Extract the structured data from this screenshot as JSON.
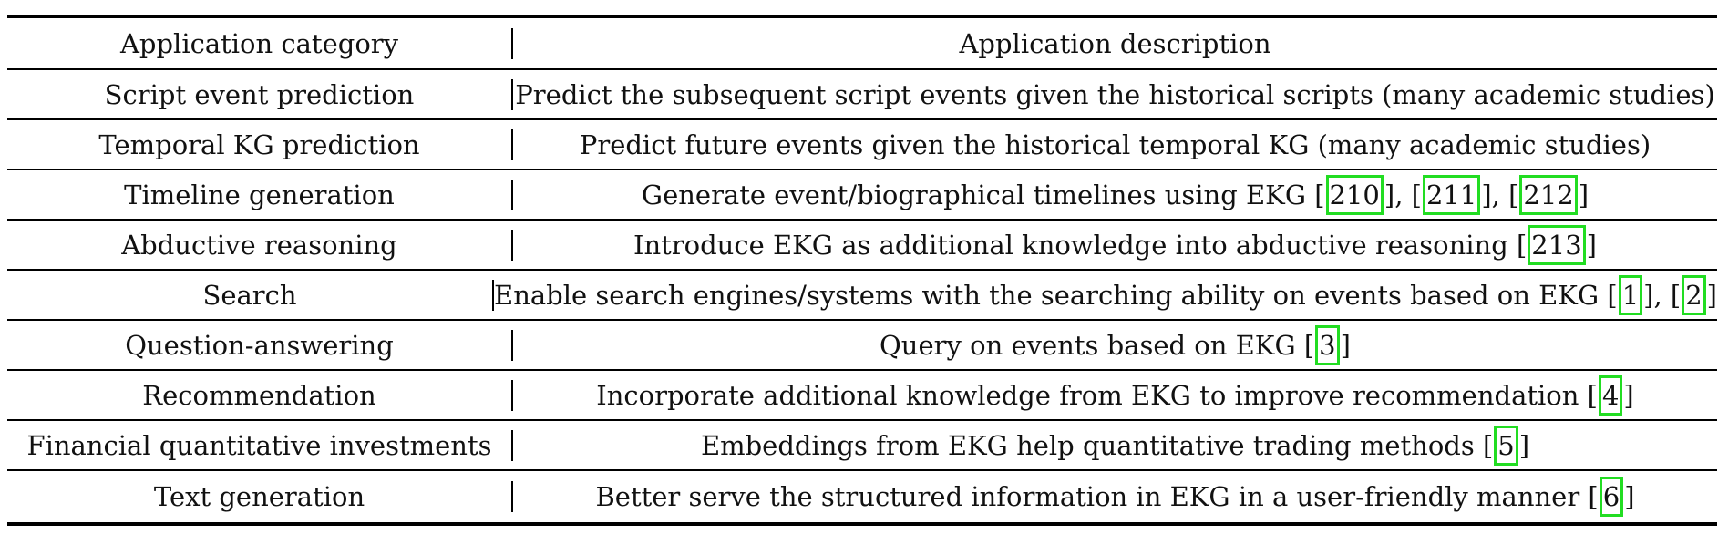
{
  "header": {
    "category": "Application category",
    "description": "Application description"
  },
  "rows": [
    {
      "category": "Script event prediction",
      "parts": [
        {
          "t": "Predict the subsequent script events given the historical scripts (many academic studies)"
        }
      ]
    },
    {
      "category": "Temporal KG prediction",
      "parts": [
        {
          "t": "Predict future events given the historical temporal KG (many academic studies)"
        }
      ]
    },
    {
      "category": "Timeline generation",
      "parts": [
        {
          "t": "Generate event/biographical timelines using EKG ["
        },
        {
          "c": "210"
        },
        {
          "t": "], ["
        },
        {
          "c": "211"
        },
        {
          "t": "], ["
        },
        {
          "c": "212"
        },
        {
          "t": "]"
        }
      ]
    },
    {
      "category": "Abductive reasoning",
      "parts": [
        {
          "t": "Introduce EKG as additional knowledge into abductive reasoning ["
        },
        {
          "c": "213"
        },
        {
          "t": "]"
        }
      ]
    },
    {
      "category": "Search",
      "parts": [
        {
          "t": "Enable search engines/systems with the searching ability on events based on EKG ["
        },
        {
          "c": "1"
        },
        {
          "t": "], ["
        },
        {
          "c": "2"
        },
        {
          "t": "]"
        }
      ]
    },
    {
      "category": "Question-answering",
      "parts": [
        {
          "t": "Query on events based on EKG ["
        },
        {
          "c": "3"
        },
        {
          "t": "]"
        }
      ]
    },
    {
      "category": "Recommendation",
      "parts": [
        {
          "t": "Incorporate additional knowledge from EKG to improve recommendation ["
        },
        {
          "c": "4"
        },
        {
          "t": "]"
        }
      ]
    },
    {
      "category": "Financial quantitative investments",
      "parts": [
        {
          "t": "Embeddings from EKG help quantitative trading methods ["
        },
        {
          "c": "5"
        },
        {
          "t": "]"
        }
      ]
    },
    {
      "category": "Text generation",
      "parts": [
        {
          "t": "Better serve the structured information in EKG in a user-friendly manner ["
        },
        {
          "c": "6"
        },
        {
          "t": "]"
        }
      ]
    }
  ],
  "colors": {
    "citation_box": "#22dd22",
    "rules": "#000000"
  }
}
